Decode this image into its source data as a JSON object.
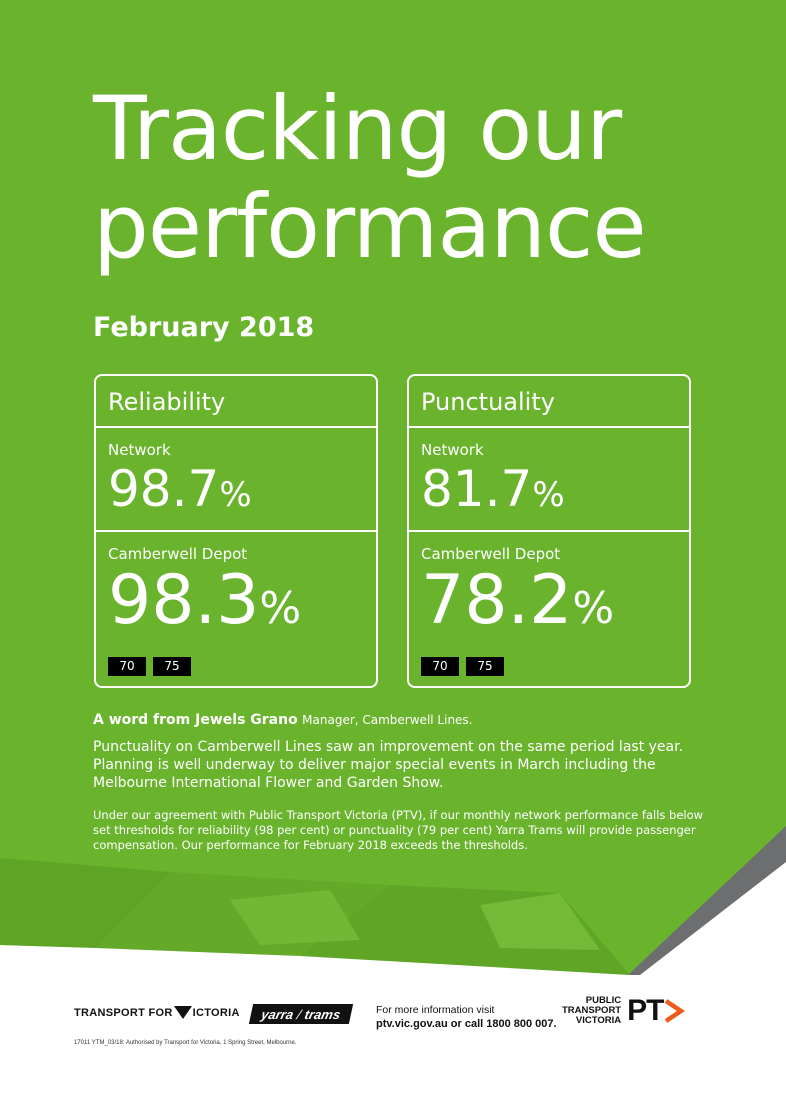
{
  "title_line1": "Tracking our",
  "title_line2": "performance",
  "period": "February 2018",
  "colors": {
    "background_green": "#6ab42d",
    "route_badge": "#000000",
    "ptv_orange": "#ed5b1c",
    "band_grey": "#6d6e70"
  },
  "cards": [
    {
      "heading": "Reliability",
      "network_label": "Network",
      "network_value": "98.7",
      "depot_label": "Camberwell Depot",
      "depot_value": "98.3",
      "percent_sign": "%",
      "routes": [
        "70",
        "75"
      ]
    },
    {
      "heading": "Punctuality",
      "network_label": "Network",
      "network_value": "81.7",
      "depot_label": "Camberwell Depot",
      "depot_value": "78.2",
      "percent_sign": "%",
      "routes": [
        "70",
        "75"
      ]
    }
  ],
  "word_intro": "A word from Jewels Grano",
  "word_role": "Manager, Camberwell Lines.",
  "message": "Punctuality on Camberwell Lines saw an improvement on the same period last year. Planning is well underway to deliver major special events in March including the Melbourne International Flower and Garden Show.",
  "fine_print": "Under our agreement with Public Transport Victoria (PTV), if our monthly network performance falls below set thresholds for reliability (98 per cent) or punctuality (79 per cent) Yarra Trams will provide passenger compensation. Our performance for February 2018 exceeds the thresholds.",
  "footer": {
    "tfv_left": "TRANSPORT FOR",
    "tfv_right": "ICTORIA",
    "yarra_left": "yarra",
    "yarra_slash": "/",
    "yarra_right": "trams",
    "info_line1": "For more information visit",
    "info_line2": "ptv.vic.gov.au or call 1800 800 007.",
    "ptv_line1": "PUBLIC",
    "ptv_line2": "TRANSPORT",
    "ptv_line3": "VICTORIA",
    "ptv_letters": "PT",
    "authorised": "17011 YTM_03/18: Authorised by Transport for Victoria, 1 Spring Street, Melbourne."
  }
}
